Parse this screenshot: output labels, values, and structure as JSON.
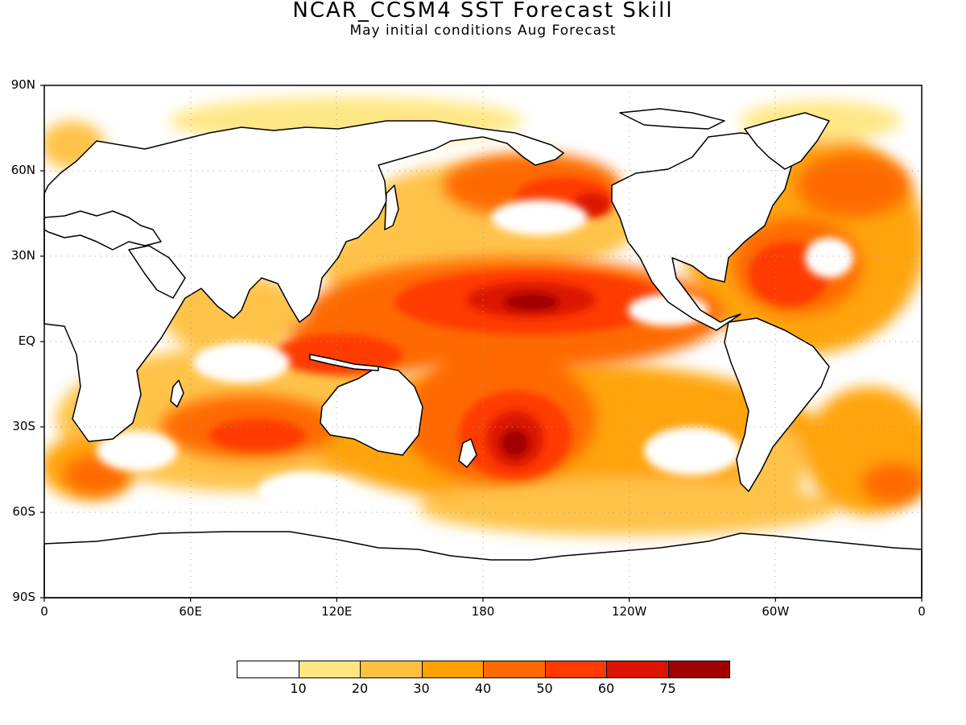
{
  "header": {
    "title": "NCAR_CCSM4 SST Forecast Skill",
    "subtitle": "May initial conditions  Aug Forecast"
  },
  "map": {
    "lat_ticks": [
      {
        "label": "90N",
        "value": 90
      },
      {
        "label": "60N",
        "value": 60
      },
      {
        "label": "30N",
        "value": 30
      },
      {
        "label": "EQ",
        "value": 0
      },
      {
        "label": "30S",
        "value": -30
      },
      {
        "label": "60S",
        "value": -60
      },
      {
        "label": "90S",
        "value": -90
      }
    ],
    "lon_ticks": [
      {
        "label": "0",
        "value": 0
      },
      {
        "label": "60E",
        "value": 60
      },
      {
        "label": "120E",
        "value": 120
      },
      {
        "label": "180",
        "value": 180
      },
      {
        "label": "120W",
        "value": 240
      },
      {
        "label": "60W",
        "value": 300
      },
      {
        "label": "0",
        "value": 360
      }
    ],
    "lon_range": [
      0,
      360
    ],
    "lat_range": [
      -90,
      90
    ],
    "grid": "dotted"
  },
  "legend": {
    "colors": [
      "#ffffff",
      "#ffe680",
      "#ffc040",
      "#ffa000",
      "#ff6a00",
      "#ff3a00",
      "#dc1400",
      "#a00000"
    ],
    "labels": [
      "10",
      "20",
      "30",
      "40",
      "50",
      "60",
      "75"
    ]
  },
  "colors": {
    "land": "#ffffff",
    "coastline": "#000000"
  }
}
